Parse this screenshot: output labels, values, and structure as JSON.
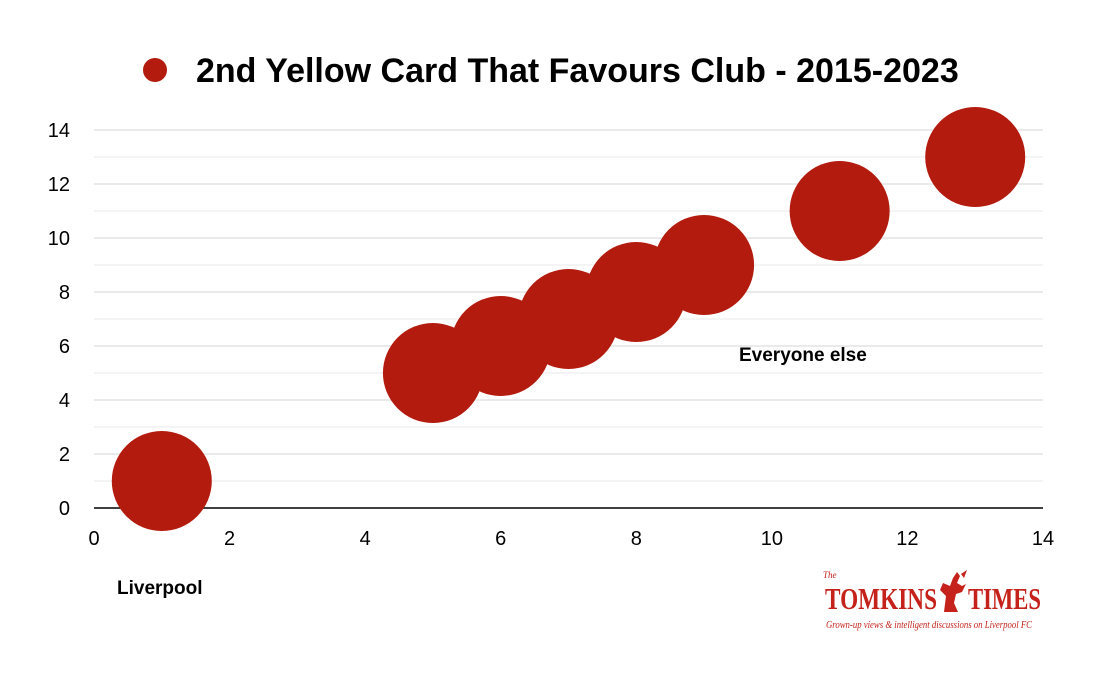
{
  "chart_data": {
    "type": "scatter",
    "title": "",
    "xlabel": "",
    "ylabel": "",
    "xlim": [
      0,
      14
    ],
    "ylim": [
      0,
      14
    ],
    "xticks": [
      0,
      2,
      4,
      6,
      8,
      10,
      12,
      14
    ],
    "yticks": [
      0,
      2,
      4,
      6,
      8,
      10,
      12,
      14
    ],
    "grid": true,
    "legend_position": "top",
    "series": [
      {
        "name": "2nd Yellow Card That Favours Club - 2015-2023",
        "color": "#b31b0e",
        "points": [
          {
            "x": 1,
            "y": 1
          },
          {
            "x": 5,
            "y": 5
          },
          {
            "x": 6,
            "y": 6
          },
          {
            "x": 7,
            "y": 7
          },
          {
            "x": 8,
            "y": 8
          },
          {
            "x": 9,
            "y": 9
          },
          {
            "x": 11,
            "y": 11
          },
          {
            "x": 13,
            "y": 13
          }
        ]
      }
    ],
    "annotations": [
      {
        "text": "Liverpool"
      },
      {
        "text": "Everyone else"
      }
    ]
  },
  "branding": {
    "the": "The",
    "name_left": "TOMKINS",
    "name_right": "TIMES",
    "tagline": "Grown-up views & intelligent discussions on Liverpool FC",
    "color": "#c4221a",
    "icon": "liver-bird-icon"
  }
}
